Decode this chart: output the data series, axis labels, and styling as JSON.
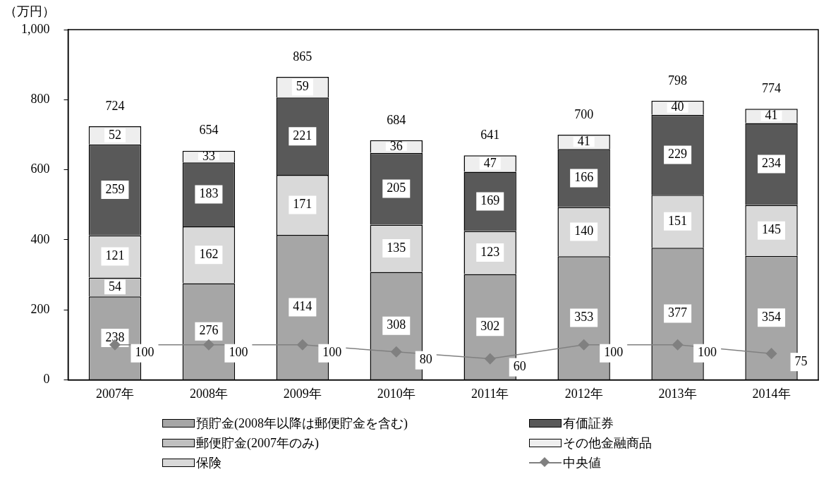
{
  "chart_data": {
    "type": "bar",
    "stacked": true,
    "ylabel": "（万円）",
    "categories": [
      "2007年",
      "2008年",
      "2009年",
      "2010年",
      "2011年",
      "2012年",
      "2013年",
      "2014年"
    ],
    "series": [
      {
        "name": "預貯金(2008年以降は郵便貯金を含む)",
        "color": "#a6a6a6",
        "values": [
          238,
          276,
          414,
          308,
          302,
          353,
          377,
          354
        ]
      },
      {
        "name": "郵便貯金(2007年のみ)",
        "color": "#c0c0c0",
        "values": [
          54,
          null,
          null,
          null,
          null,
          null,
          null,
          null
        ]
      },
      {
        "name": "保険",
        "color": "#d9d9d9",
        "values": [
          121,
          162,
          171,
          135,
          123,
          140,
          151,
          145
        ]
      },
      {
        "name": "有価証券",
        "color": "#595959",
        "values": [
          259,
          183,
          221,
          205,
          169,
          166,
          229,
          234
        ]
      },
      {
        "name": "その他金融商品",
        "color": "#eeeeee",
        "values": [
          52,
          33,
          59,
          36,
          47,
          41,
          40,
          41
        ]
      },
      {
        "name": "中央値",
        "type": "line",
        "color": "#808080",
        "marker": "diamond",
        "values": [
          100,
          100,
          100,
          80,
          60,
          100,
          100,
          75
        ]
      }
    ],
    "totals": [
      "724",
      "654",
      "865",
      "684",
      "641",
      "700",
      "798",
      "774"
    ],
    "data_labels": true,
    "grid": false,
    "legend": "bottom",
    "ylim": [
      0,
      1000
    ],
    "yticks": [
      0,
      200,
      400,
      600,
      800,
      {
        "value": 1000,
        "label": "1,000"
      }
    ]
  }
}
